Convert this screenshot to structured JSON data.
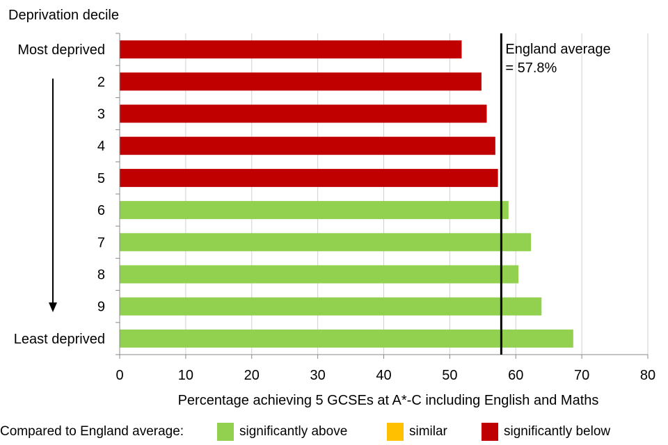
{
  "chart_data": {
    "type": "bar",
    "orientation": "horizontal",
    "title": "",
    "ylabel": "Deprivation decile",
    "xlabel": "Percentage achieving 5 GCSEs at A*-C including English and Maths",
    "categories": [
      "Most deprived",
      "2",
      "3",
      "4",
      "5",
      "6",
      "7",
      "8",
      "9",
      "Least deprived"
    ],
    "values": [
      51.8,
      54.8,
      55.6,
      56.9,
      57.3,
      58.9,
      62.3,
      60.4,
      63.9,
      68.7
    ],
    "bar_status": [
      "below",
      "below",
      "below",
      "below",
      "below",
      "above",
      "above",
      "above",
      "above",
      "above"
    ],
    "xlim": [
      0,
      80
    ],
    "xticks": [
      0,
      10,
      20,
      30,
      40,
      50,
      60,
      70,
      80
    ],
    "grid": true,
    "reference_line": {
      "value": 57.8,
      "label_line1": "England average",
      "label_line2": "= 57.8%"
    },
    "legend": {
      "title": "Compared to England average:",
      "items": [
        {
          "key": "above",
          "label": "significantly above",
          "color": "#92d050"
        },
        {
          "key": "similar",
          "label": "similar",
          "color": "#ffc000"
        },
        {
          "key": "below",
          "label": "significantly below",
          "color": "#c00000"
        }
      ],
      "placement": "bottom"
    }
  }
}
